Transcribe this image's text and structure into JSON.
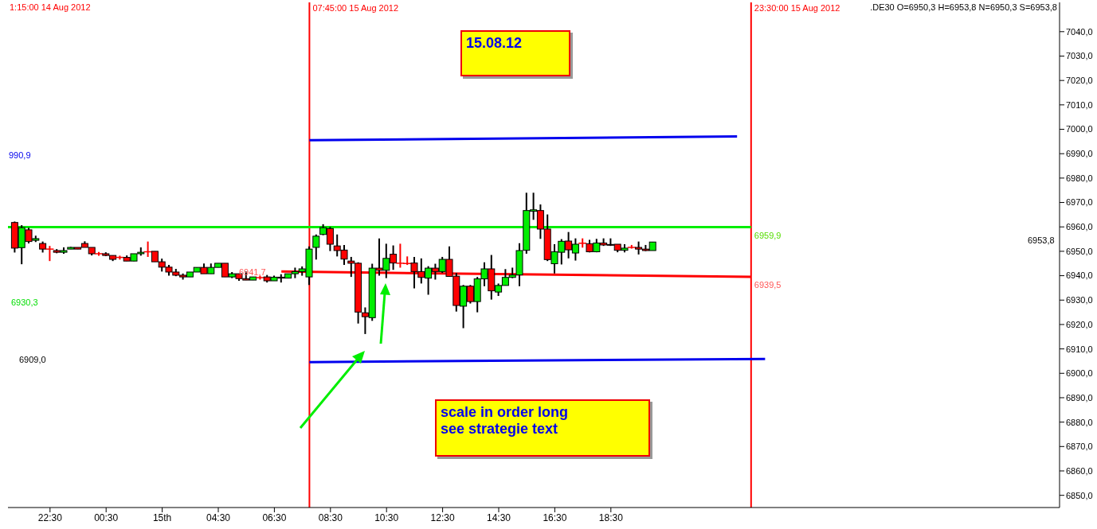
{
  "chart_data": {
    "type": "candlestick",
    "subtitle": ".DE30 O=6950,3 H=6953,8 N=6950,3 S=6953,8",
    "x": [
      "2012-08-14T21:15",
      "2012-08-14T21:30",
      "2012-08-14T21:45",
      "2012-08-14T22:00",
      "2012-08-14T22:15",
      "2012-08-14T22:30",
      "2012-08-14T22:45",
      "2012-08-14T23:00",
      "2012-08-14T23:15",
      "2012-08-14T23:30",
      "2012-08-14T23:45",
      "2012-08-15T00:00",
      "2012-08-15T00:15",
      "2012-08-15T00:30",
      "2012-08-15T00:45",
      "2012-08-15T01:00",
      "2012-08-15T01:15",
      "2012-08-15T01:30",
      "2012-08-15T01:45",
      "2012-08-15T02:00",
      "2012-08-15T02:15",
      "2012-08-15T02:30",
      "2012-08-15T02:45",
      "2012-08-15T03:00",
      "2012-08-15T03:15",
      "2012-08-15T03:30",
      "2012-08-15T03:45",
      "2012-08-15T04:00",
      "2012-08-15T04:15",
      "2012-08-15T04:30",
      "2012-08-15T04:45",
      "2012-08-15T05:00",
      "2012-08-15T05:15",
      "2012-08-15T05:30",
      "2012-08-15T05:45",
      "2012-08-15T06:00",
      "2012-08-15T06:15",
      "2012-08-15T06:30",
      "2012-08-15T06:45",
      "2012-08-15T07:00",
      "2012-08-15T07:15",
      "2012-08-15T07:30",
      "2012-08-15T07:45",
      "2012-08-15T08:00",
      "2012-08-15T08:15",
      "2012-08-15T08:30",
      "2012-08-15T08:45",
      "2012-08-15T09:00",
      "2012-08-15T09:15",
      "2012-08-15T09:30",
      "2012-08-15T09:45",
      "2012-08-15T10:00",
      "2012-08-15T10:15",
      "2012-08-15T10:30",
      "2012-08-15T10:45",
      "2012-08-15T11:00",
      "2012-08-15T11:15",
      "2012-08-15T11:30",
      "2012-08-15T11:45",
      "2012-08-15T12:00",
      "2012-08-15T12:15",
      "2012-08-15T12:30",
      "2012-08-15T12:45",
      "2012-08-15T13:00",
      "2012-08-15T13:15",
      "2012-08-15T13:30",
      "2012-08-15T13:45",
      "2012-08-15T14:00",
      "2012-08-15T14:15",
      "2012-08-15T14:30",
      "2012-08-15T14:45",
      "2012-08-15T15:00",
      "2012-08-15T15:15",
      "2012-08-15T15:30",
      "2012-08-15T15:45",
      "2012-08-15T16:00",
      "2012-08-15T16:15",
      "2012-08-15T16:30",
      "2012-08-15T16:45",
      "2012-08-15T17:00",
      "2012-08-15T17:15",
      "2012-08-15T17:30",
      "2012-08-15T17:45",
      "2012-08-15T18:00",
      "2012-08-15T18:15",
      "2012-08-15T18:30",
      "2012-08-15T18:45",
      "2012-08-15T19:00",
      "2012-08-15T19:15",
      "2012-08-15T19:30",
      "2012-08-15T19:45",
      "2012-08-15T20:00"
    ],
    "ohlc": [
      [
        6961.8,
        6962.2,
        6949.5,
        6951.3
      ],
      [
        6951.5,
        6960.7,
        6944.7,
        6959.7
      ],
      [
        6958.8,
        6959.7,
        6953.2,
        6954.0
      ],
      [
        6954.5,
        6956.4,
        6953.8,
        6955.2
      ],
      [
        6953.2,
        6954.0,
        6949.5,
        6950.9
      ],
      [
        6950.9,
        6952.2,
        6946.0,
        6950.9
      ],
      [
        6950.3,
        6950.9,
        6949.2,
        6949.6
      ],
      [
        6949.6,
        6951.6,
        6949.0,
        6950.3
      ],
      [
        6950.9,
        6951.8,
        6950.9,
        6951.6
      ],
      [
        6951.6,
        6951.6,
        6950.9,
        6950.9
      ],
      [
        6953.2,
        6954.1,
        6951.6,
        6951.6
      ],
      [
        6951.6,
        6951.6,
        6948.3,
        6949.0
      ],
      [
        6949.0,
        6949.7,
        6948.2,
        6949.0
      ],
      [
        6949.0,
        6949.6,
        6948.0,
        6948.3
      ],
      [
        6948.3,
        6948.3,
        6946.0,
        6946.7
      ],
      [
        6947.5,
        6948.2,
        6946.6,
        6947.5
      ],
      [
        6947.5,
        6948.3,
        6946.0,
        6946.0
      ],
      [
        6946.0,
        6949.0,
        6946.0,
        6949.0
      ],
      [
        6949.0,
        6951.6,
        6948.2,
        6949.6
      ],
      [
        6949.8,
        6954.0,
        6947.7,
        6949.8
      ],
      [
        6950.0,
        6950.0,
        6945.7,
        6945.7
      ],
      [
        6945.7,
        6947.0,
        6941.7,
        6943.5
      ],
      [
        6943.5,
        6944.4,
        6940.0,
        6941.5
      ],
      [
        6941.5,
        6942.8,
        6939.8,
        6940.2
      ],
      [
        6940.2,
        6940.9,
        6938.4,
        6939.5
      ],
      [
        6939.5,
        6941.5,
        6939.5,
        6941.5
      ],
      [
        6941.5,
        6943.4,
        6941.5,
        6943.4
      ],
      [
        6943.4,
        6945.0,
        6940.8,
        6940.8
      ],
      [
        6940.8,
        6945.0,
        6940.8,
        6943.4
      ],
      [
        6943.4,
        6945.1,
        6943.4,
        6945.1
      ],
      [
        6945.1,
        6945.1,
        6939.5,
        6939.5
      ],
      [
        6939.5,
        6941.5,
        6939.0,
        6940.8
      ],
      [
        6940.8,
        6940.8,
        6937.9,
        6938.8
      ],
      [
        6938.8,
        6941.7,
        6938.2,
        6938.2
      ],
      [
        6938.2,
        6939.5,
        6938.2,
        6939.5
      ],
      [
        6939.2,
        6940.0,
        6938.4,
        6939.2
      ],
      [
        6939.5,
        6940.3,
        6937.2,
        6937.9
      ],
      [
        6937.9,
        6940.0,
        6937.9,
        6939.4
      ],
      [
        6939.4,
        6940.6,
        6937.2,
        6939.0
      ],
      [
        6939.0,
        6940.8,
        6939.0,
        6940.8
      ],
      [
        6940.8,
        6943.3,
        6939.0,
        6941.7
      ],
      [
        6941.7,
        6943.8,
        6940.0,
        6942.8
      ],
      [
        6939.5,
        6952.0,
        6936.2,
        6950.9
      ],
      [
        6951.6,
        6956.9,
        6946.6,
        6956.2
      ],
      [
        6956.9,
        6961.1,
        6956.6,
        6959.7
      ],
      [
        6959.3,
        6960.0,
        6950.1,
        6952.9
      ],
      [
        6952.2,
        6956.9,
        6947.9,
        6950.3
      ],
      [
        6950.5,
        6952.6,
        6944.4,
        6946.8
      ],
      [
        6946.0,
        6947.7,
        6939.5,
        6945.1
      ],
      [
        6945.1,
        6945.5,
        6920.4,
        6925.1
      ],
      [
        6924.8,
        6927.0,
        6916.1,
        6923.2
      ],
      [
        6922.8,
        6944.9,
        6921.5,
        6943.1
      ],
      [
        6943.1,
        6955.3,
        6940.0,
        6942.2
      ],
      [
        6942.2,
        6953.1,
        6939.0,
        6947.1
      ],
      [
        6948.8,
        6952.4,
        6942.4,
        6945.2
      ],
      [
        6945.1,
        6953.1,
        6943.3,
        6945.1
      ],
      [
        6945.0,
        6947.9,
        6944.4,
        6945.0
      ],
      [
        6945.2,
        6947.7,
        6934.8,
        6941.7
      ],
      [
        6941.7,
        6947.1,
        6936.8,
        6939.3
      ],
      [
        6939.0,
        6943.9,
        6932.2,
        6943.1
      ],
      [
        6943.1,
        6944.9,
        6938.4,
        6941.7
      ],
      [
        6941.7,
        6947.7,
        6941.1,
        6946.7
      ],
      [
        6946.7,
        6952.0,
        6939.5,
        6939.7
      ],
      [
        6939.8,
        6941.1,
        6925.3,
        6927.8
      ],
      [
        6927.5,
        6936.2,
        6918.5,
        6935.7
      ],
      [
        6935.7,
        6936.2,
        6928.6,
        6929.4
      ],
      [
        6929.4,
        6939.5,
        6925.0,
        6938.7
      ],
      [
        6938.7,
        6945.5,
        6935.7,
        6942.8
      ],
      [
        6942.8,
        6948.5,
        6930.2,
        6933.8
      ],
      [
        6933.3,
        6936.8,
        6931.7,
        6936.0
      ],
      [
        6936.0,
        6942.7,
        6936.0,
        6939.3
      ],
      [
        6939.3,
        6943.3,
        6939.0,
        6940.3
      ],
      [
        6940.3,
        6953.3,
        6935.7,
        6950.3
      ],
      [
        6950.4,
        6974.0,
        6949.0,
        6966.7
      ],
      [
        6966.4,
        6974.0,
        6962.9,
        6967.0
      ],
      [
        6966.7,
        6969.2,
        6955.1,
        6959.1
      ],
      [
        6959.1,
        6965.1,
        6946.0,
        6946.6
      ],
      [
        6944.9,
        6952.9,
        6940.9,
        6949.8
      ],
      [
        6949.6,
        6955.0,
        6944.6,
        6954.1
      ],
      [
        6954.2,
        6957.9,
        6947.1,
        6950.6
      ],
      [
        6949.3,
        6955.3,
        6946.2,
        6952.9
      ],
      [
        6953.3,
        6955.3,
        6951.5,
        6953.3
      ],
      [
        6953.1,
        6954.7,
        6949.6,
        6949.8
      ],
      [
        6949.8,
        6955.1,
        6949.6,
        6953.4
      ],
      [
        6953.4,
        6955.3,
        6952.2,
        6952.6
      ],
      [
        6952.8,
        6955.3,
        6952.2,
        6952.6
      ],
      [
        6952.9,
        6952.9,
        6949.6,
        6950.4
      ],
      [
        6950.4,
        6952.9,
        6949.6,
        6951.3
      ],
      [
        6951.6,
        6952.6,
        6951.1,
        6951.6
      ],
      [
        6951.6,
        6954.0,
        6948.7,
        6950.9
      ],
      [
        6950.9,
        6952.6,
        6950.1,
        6950.3
      ],
      [
        6950.3,
        6953.8,
        6950.3,
        6953.8
      ]
    ],
    "series": [
      {
        "type": "line",
        "color": "#00ee00",
        "x": [
          "2012-08-14T21:00",
          "2012-08-15T23:30"
        ],
        "values": [
          6959.9,
          6959.9
        ]
      },
      {
        "type": "line",
        "color": "#ff0000",
        "x": [
          "2012-08-15T06:45",
          "2012-08-15T23:30"
        ],
        "values": [
          6941.7,
          6939.5
        ]
      },
      {
        "type": "line",
        "color": "#0000ee",
        "x": [
          "2012-08-15T07:45",
          "2012-08-15T23:00"
        ],
        "values": [
          6995.5,
          6997.1
        ]
      },
      {
        "type": "line",
        "color": "#0000ee",
        "x": [
          "2012-08-15T07:45",
          "2012-08-16T00:00"
        ],
        "values": [
          6904.6,
          6905.9
        ]
      }
    ],
    "ref_lines": [
      {
        "axis": "x",
        "value": "2012-08-15T07:45",
        "label": "07:45:00 15 Aug 2012",
        "color": "#ff0000"
      },
      {
        "axis": "x",
        "value": "2012-08-15T23:30",
        "label": "23:30:00 15 Aug 2012",
        "color": "#ff0000"
      }
    ],
    "annotations": [
      "1:15:00 14 Aug 2012",
      "15.08.12",
      "scale in order long\nsee strategie text",
      "990,9",
      "6930,3",
      "6909,0",
      "6941,7",
      {
        "text": "6959,9",
        "x": "2012-08-15T23:30",
        "y": 6959.9
      },
      {
        "text": "6939,5",
        "x": "2012-08-15T23:30",
        "y": 6939.5
      },
      "6953,8"
    ],
    "xlim": [
      "2012-08-14T21:00",
      "2012-08-16T10:30"
    ],
    "xticks": [
      {
        "value": "2012-08-14T22:30",
        "label": "22:30"
      },
      {
        "value": "2012-08-15T00:30",
        "label": "00:30"
      },
      {
        "value": "2012-08-15T02:30",
        "label": "15th"
      },
      {
        "value": "2012-08-15T04:30",
        "label": "04:30"
      },
      {
        "value": "2012-08-15T06:30",
        "label": "06:30"
      },
      {
        "value": "2012-08-15T08:30",
        "label": "08:30"
      },
      {
        "value": "2012-08-15T10:30",
        "label": "10:30"
      },
      {
        "value": "2012-08-15T12:30",
        "label": "12:30"
      },
      {
        "value": "2012-08-15T14:30",
        "label": "14:30"
      },
      {
        "value": "2012-08-15T16:30",
        "label": "16:30"
      },
      {
        "value": "2012-08-15T18:30",
        "label": "18:30"
      }
    ],
    "ylim": [
      6845,
      7052
    ],
    "yticks": [
      {
        "value": 6850,
        "label": "6850,0"
      },
      {
        "value": 6860,
        "label": "6860,0"
      },
      {
        "value": 6870,
        "label": "6870,0"
      },
      {
        "value": 6880,
        "label": "6880,0"
      },
      {
        "value": 6890,
        "label": "6890,0"
      },
      {
        "value": 6900,
        "label": "6900,0"
      },
      {
        "value": 6910,
        "label": "6910,0"
      },
      {
        "value": 6920,
        "label": "6920,0"
      },
      {
        "value": 6930,
        "label": "6930,0"
      },
      {
        "value": 6940,
        "label": "6940,0"
      },
      {
        "value": 6950,
        "label": "6950,0"
      },
      {
        "value": 6960,
        "label": "6960,0"
      },
      {
        "value": 6970,
        "label": "6970,0"
      },
      {
        "value": 6980,
        "label": "6980,0"
      },
      {
        "value": 6990,
        "label": "6990,0"
      },
      {
        "value": 7000,
        "label": "7000,0"
      },
      {
        "value": 7010,
        "label": "7010,0"
      },
      {
        "value": 7020,
        "label": "7020,0"
      },
      {
        "value": 7030,
        "label": "7030,0"
      },
      {
        "value": 7040,
        "label": "7040,0"
      }
    ]
  }
}
